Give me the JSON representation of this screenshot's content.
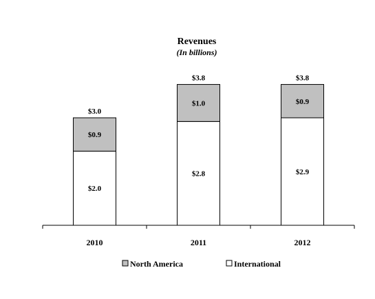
{
  "chart_data": {
    "type": "bar",
    "stacked": true,
    "title": "Revenues",
    "subtitle": "(In billions)",
    "categories": [
      "2010",
      "2011",
      "2012"
    ],
    "series": [
      {
        "name": "International",
        "values": [
          2.0,
          2.8,
          2.9
        ],
        "labels": [
          "$2.0",
          "$2.8",
          "$2.9"
        ],
        "color": "#ffffff"
      },
      {
        "name": "North America",
        "values": [
          0.9,
          1.0,
          0.9
        ],
        "labels": [
          "$0.9",
          "$1.0",
          "$0.9"
        ],
        "color": "#c0c0c0"
      }
    ],
    "totals": [
      "$3.0",
      "$3.8",
      "$3.8"
    ],
    "ylim": [
      0,
      4.0
    ],
    "grid": false,
    "legend_position": "bottom",
    "legend_order": [
      "North America",
      "International"
    ]
  }
}
